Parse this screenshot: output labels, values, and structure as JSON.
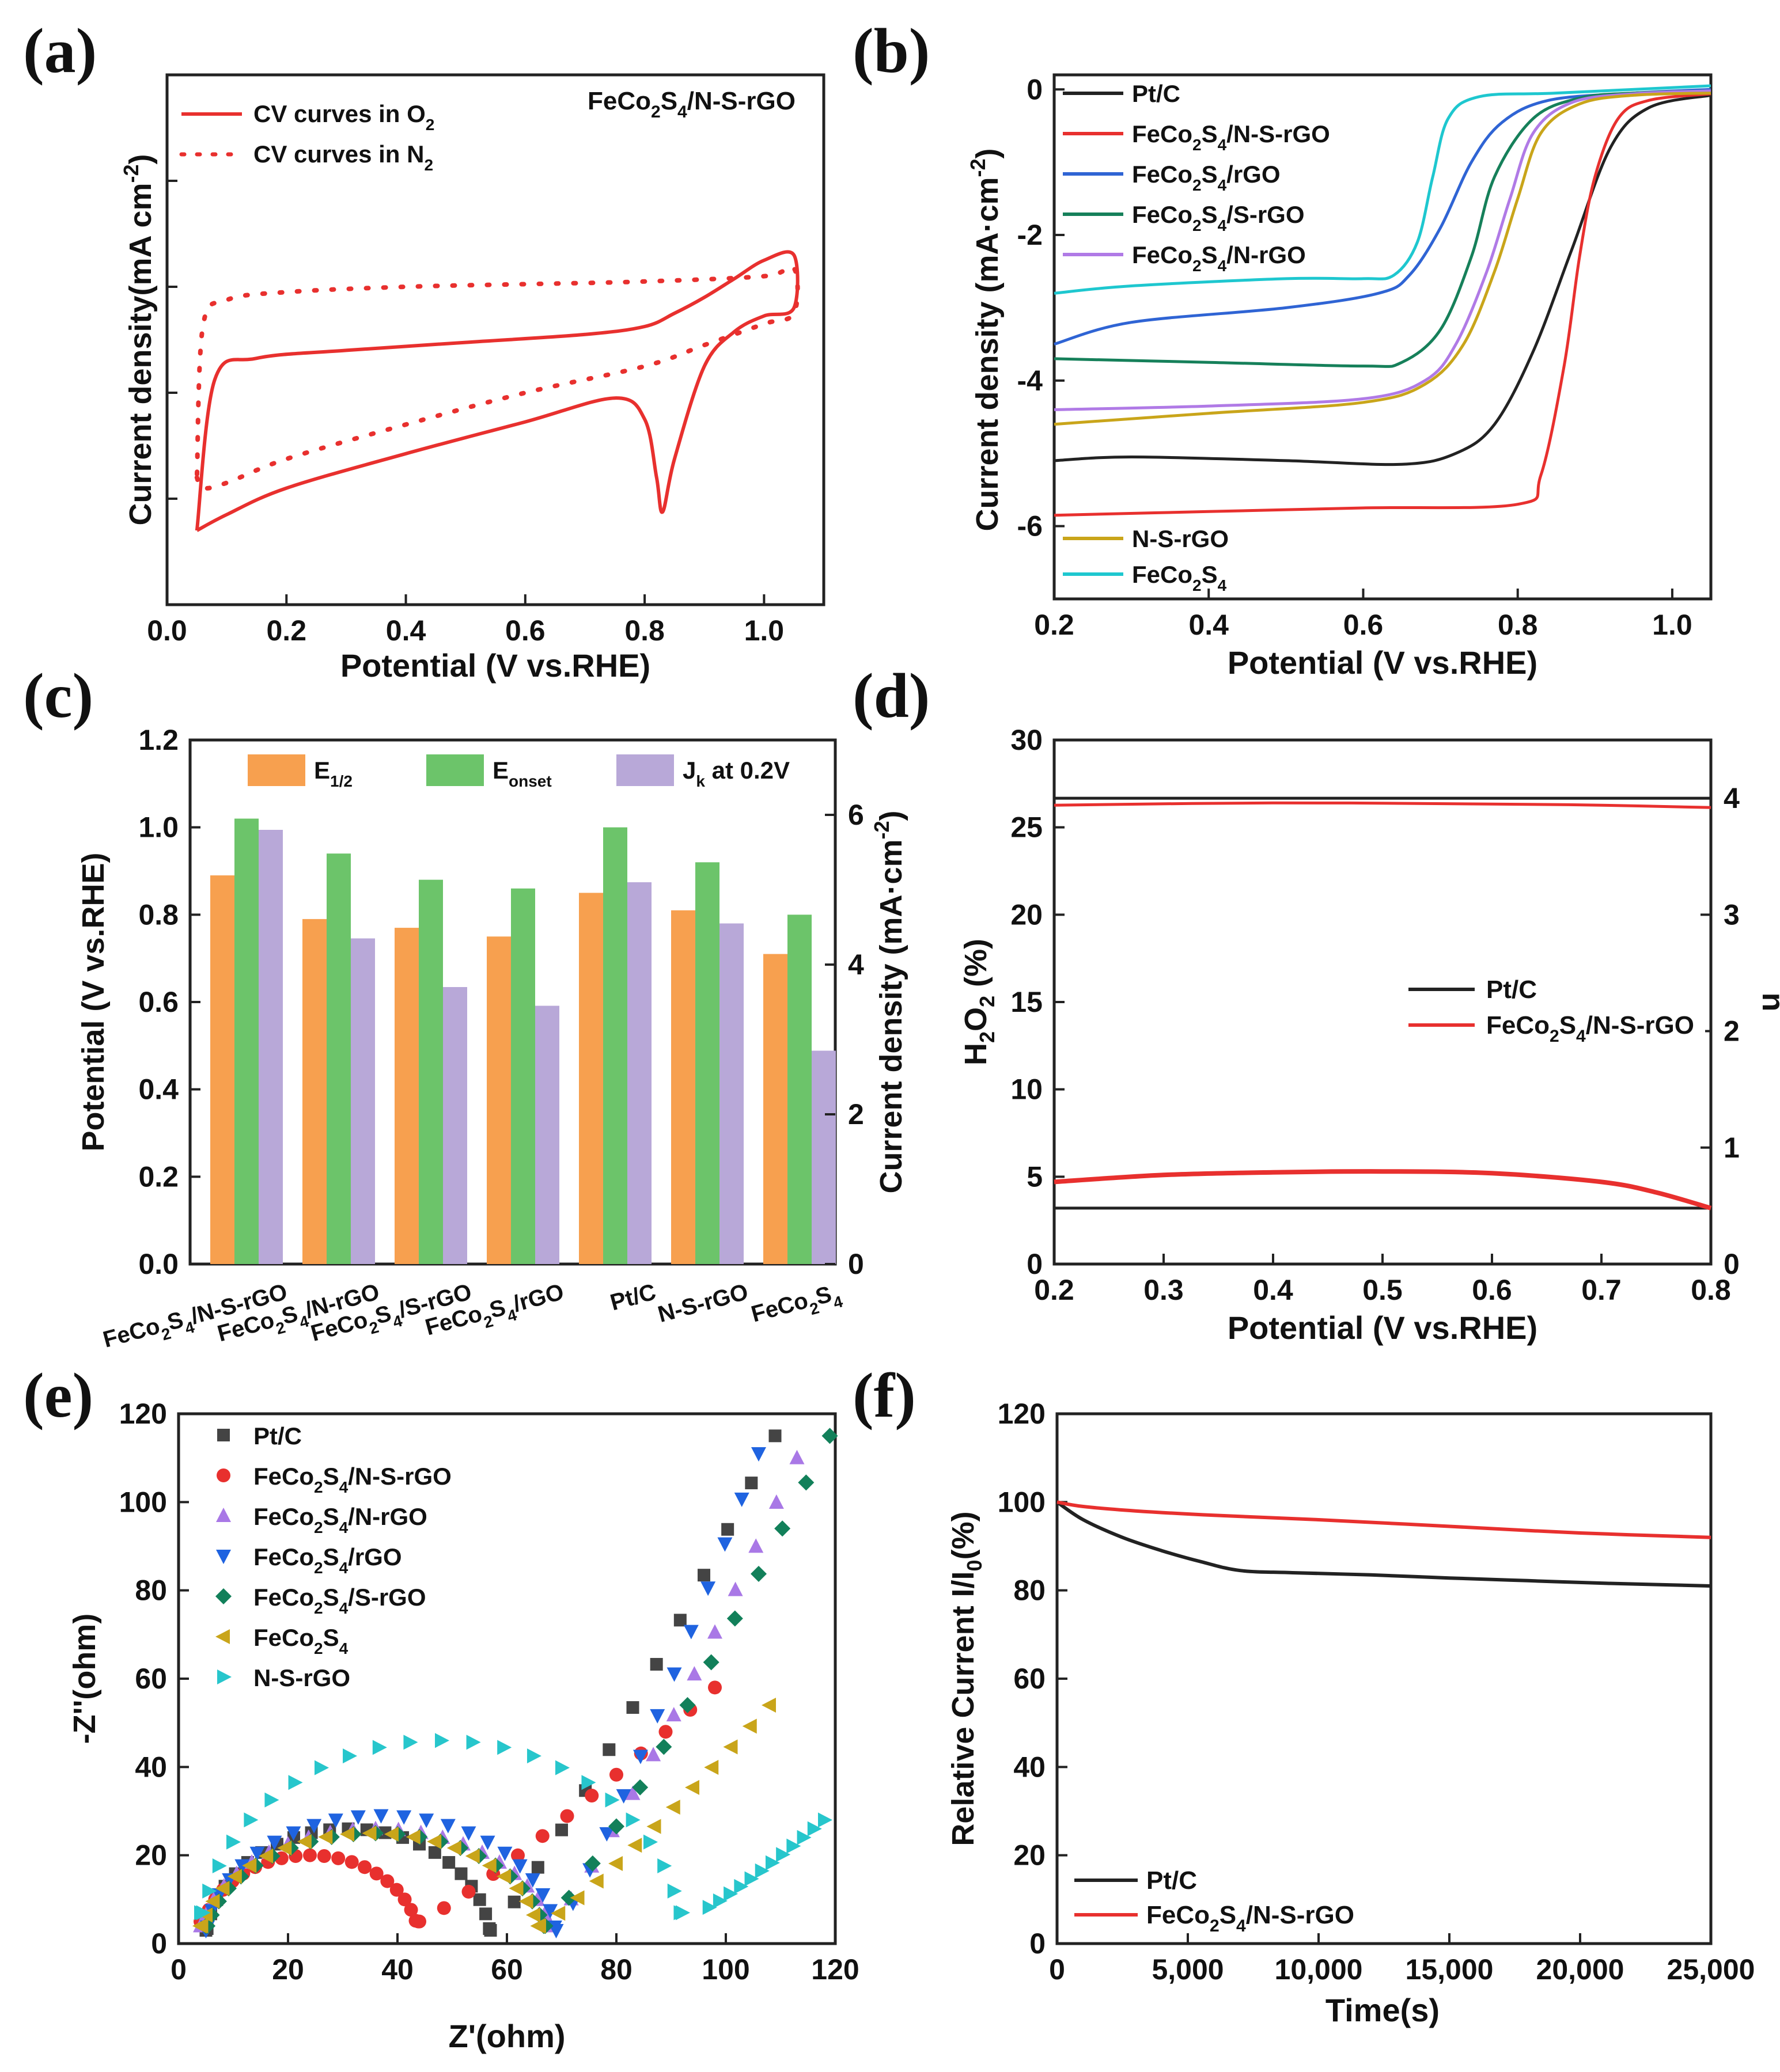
{
  "colors": {
    "black": "#222222",
    "red": "#e8302e",
    "blue": "#2f64d4",
    "green": "#16805a",
    "violet": "#b07ae6",
    "gold": "#c9a51a",
    "cyan": "#1ec7cf",
    "orange": "#f7a04f",
    "lightgreen": "#6cc46a",
    "lavender": "#b8a8d8",
    "markerGray": "#444444",
    "markerRed": "#e8302e",
    "markerViolet": "#a978e6",
    "markerBlue": "#1f63e0",
    "markerGreen": "#12805a",
    "markerGold": "#c9a51a",
    "markerCyan": "#27c6cc"
  },
  "chart_data": [
    {
      "panel": "(a)",
      "type": "line",
      "annotation": "FeCo2S4/N-S-rGO",
      "xlabel": "Potential (V vs.RHE)",
      "ylabel": "Current density(mA cm-2)",
      "xlim": [
        0.0,
        1.1
      ],
      "ylim": [
        -1,
        1
      ],
      "xticks": [
        "0.0",
        "0.2",
        "0.4",
        "0.6",
        "0.8",
        "1.0"
      ],
      "legend": [
        {
          "label": "CV curves in O2",
          "style": "solid"
        },
        {
          "label": "CV curves in N2",
          "style": "dotted"
        }
      ],
      "series": [
        {
          "name": "CV curves in O2",
          "style": "solid",
          "color": "red",
          "x": [
            0.05,
            0.1,
            0.2,
            0.4,
            0.6,
            0.75,
            0.8,
            0.82,
            0.83,
            0.85,
            0.9,
            0.95,
            1.0,
            1.05,
            1.05,
            1.0,
            0.95,
            0.9,
            0.85,
            0.8,
            0.7,
            0.5,
            0.3,
            0.15,
            0.08,
            0.05
          ],
          "y": [
            -0.72,
            -0.66,
            -0.56,
            -0.43,
            -0.31,
            -0.22,
            -0.3,
            -0.52,
            -0.65,
            -0.45,
            -0.1,
            0.03,
            0.09,
            0.12,
            0.32,
            0.3,
            0.23,
            0.16,
            0.1,
            0.05,
            0.02,
            -0.01,
            -0.04,
            -0.07,
            -0.15,
            -0.72
          ]
        },
        {
          "name": "CV curves in N2",
          "style": "dotted",
          "color": "red",
          "x": [
            0.05,
            0.06,
            0.1,
            0.2,
            0.4,
            0.6,
            0.8,
            0.9,
            1.0,
            1.05,
            1.05,
            1.0,
            0.8,
            0.6,
            0.4,
            0.2,
            0.1,
            0.06,
            0.05
          ],
          "y": [
            -0.52,
            -0.56,
            -0.54,
            -0.45,
            -0.32,
            -0.2,
            -0.1,
            -0.02,
            0.06,
            0.1,
            0.27,
            0.24,
            0.22,
            0.21,
            0.2,
            0.18,
            0.15,
            0.05,
            -0.52
          ]
        }
      ]
    },
    {
      "panel": "(b)",
      "type": "line",
      "xlabel": "Potential (V vs.RHE)",
      "ylabel": "Current density (mA·cm-2)",
      "xlim": [
        0.2,
        1.05
      ],
      "ylim": [
        -7,
        0.2
      ],
      "xticks": [
        "0.2",
        "0.4",
        "0.6",
        "0.8",
        "1.0"
      ],
      "yticks": [
        "0",
        "-2",
        "-4",
        "-6"
      ],
      "series": [
        {
          "name": "Pt/C",
          "color": "black",
          "x": [
            0.2,
            0.3,
            0.5,
            0.65,
            0.72,
            0.77,
            0.82,
            0.87,
            0.92,
            0.97,
            1.05
          ],
          "y": [
            -5.1,
            -5.05,
            -5.1,
            -5.15,
            -5.0,
            -4.6,
            -3.6,
            -2.2,
            -0.8,
            -0.25,
            -0.08
          ]
        },
        {
          "name": "FeCo2S4/N-S-rGO",
          "color": "red",
          "x": [
            0.2,
            0.4,
            0.6,
            0.8,
            0.83,
            0.86,
            0.88,
            0.9,
            0.93,
            0.97,
            1.05
          ],
          "y": [
            -5.85,
            -5.8,
            -5.75,
            -5.7,
            -5.3,
            -3.8,
            -2.3,
            -1.2,
            -0.4,
            -0.15,
            -0.06
          ]
        },
        {
          "name": "FeCo2S4/rGO",
          "color": "blue",
          "x": [
            0.2,
            0.3,
            0.5,
            0.62,
            0.66,
            0.7,
            0.74,
            0.78,
            0.84,
            0.95,
            1.05
          ],
          "y": [
            -3.5,
            -3.2,
            -3.0,
            -2.8,
            -2.55,
            -1.9,
            -1.0,
            -0.45,
            -0.15,
            -0.05,
            0.0
          ]
        },
        {
          "name": "FeCo2S4/S-rGO",
          "color": "green",
          "x": [
            0.2,
            0.4,
            0.6,
            0.65,
            0.7,
            0.74,
            0.77,
            0.82,
            0.88,
            0.95,
            1.05
          ],
          "y": [
            -3.7,
            -3.75,
            -3.8,
            -3.75,
            -3.3,
            -2.3,
            -1.2,
            -0.4,
            -0.12,
            -0.05,
            -0.02
          ]
        },
        {
          "name": "FeCo2S4/N-rGO",
          "color": "violet",
          "x": [
            0.2,
            0.4,
            0.6,
            0.68,
            0.72,
            0.76,
            0.79,
            0.82,
            0.87,
            0.95,
            1.05
          ],
          "y": [
            -4.4,
            -4.35,
            -4.25,
            -4.0,
            -3.5,
            -2.5,
            -1.5,
            -0.6,
            -0.18,
            -0.06,
            -0.02
          ]
        },
        {
          "name": "N-S-rGO",
          "color": "gold",
          "x": [
            0.2,
            0.4,
            0.6,
            0.68,
            0.73,
            0.77,
            0.8,
            0.83,
            0.88,
            0.95,
            1.05
          ],
          "y": [
            -4.6,
            -4.45,
            -4.3,
            -4.05,
            -3.5,
            -2.5,
            -1.5,
            -0.6,
            -0.2,
            -0.08,
            -0.05
          ]
        },
        {
          "name": "FeCo2S4",
          "color": "cyan",
          "x": [
            0.2,
            0.3,
            0.5,
            0.6,
            0.64,
            0.67,
            0.69,
            0.71,
            0.75,
            0.85,
            1.05
          ],
          "y": [
            -2.8,
            -2.7,
            -2.6,
            -2.6,
            -2.55,
            -2.1,
            -1.2,
            -0.4,
            -0.1,
            -0.05,
            0.05
          ]
        }
      ],
      "legend_top": [
        "Pt/C",
        "FeCo2S4/N-S-rGO",
        "FeCo2S4/rGO",
        "FeCo2S4/S-rGO",
        "FeCo2S4/N-rGO"
      ],
      "legend_bottom": [
        "N-S-rGO",
        "FeCo2S4"
      ]
    },
    {
      "panel": "(c)",
      "type": "bar",
      "ylabel": "Potential (V vs.RHE)",
      "ylabel_right": "Current density (mA·cm-2)",
      "ylim": [
        0,
        1.2
      ],
      "ylim_right": [
        0,
        7
      ],
      "yticks": [
        "0.0",
        "0.2",
        "0.4",
        "0.6",
        "0.8",
        "1.0",
        "1.2"
      ],
      "yticks_right": [
        "0",
        "2",
        "4",
        "6"
      ],
      "categories": [
        "FeCo2S4/N-S-rGO",
        "FeCo2S4/N-rGO",
        "FeCo2S4/S-rGO",
        "FeCo2S4/rGO",
        "Pt/C",
        "N-S-rGO",
        "FeCo2S4"
      ],
      "series": [
        {
          "name": "E1/2",
          "color": "orange",
          "axis": "left",
          "values": [
            0.89,
            0.79,
            0.77,
            0.75,
            0.85,
            0.81,
            0.71
          ]
        },
        {
          "name": "Eonset",
          "color": "lightgreen",
          "axis": "left",
          "values": [
            1.02,
            0.94,
            0.88,
            0.86,
            1.0,
            0.92,
            0.8
          ]
        },
        {
          "name": "Jk at 0.2V",
          "color": "lavender",
          "axis": "right",
          "values": [
            5.8,
            4.35,
            3.7,
            3.45,
            5.1,
            4.55,
            2.85
          ]
        }
      ],
      "legend": [
        "E1/2",
        "Eonset",
        "Jk at 0.2V"
      ]
    },
    {
      "panel": "(d)",
      "type": "line",
      "xlabel": "Potential (V vs.RHE)",
      "ylabel": "H2O2 (%)",
      "ylabel_right": "n",
      "xlim": [
        0.2,
        0.8
      ],
      "ylim": [
        0,
        30
      ],
      "ylim_right": [
        0,
        4.5
      ],
      "xticks": [
        "0.2",
        "0.3",
        "0.4",
        "0.5",
        "0.6",
        "0.7",
        "0.8"
      ],
      "yticks": [
        "0",
        "5",
        "10",
        "15",
        "20",
        "25",
        "30"
      ],
      "yticks_right": [
        "0",
        "1",
        "2",
        "3",
        "4"
      ],
      "series": [
        {
          "name": "Pt/C",
          "color": "black",
          "axis": "right",
          "x": [
            0.2,
            0.8
          ],
          "y": [
            4.0,
            4.0
          ]
        },
        {
          "name": "FeCo2S4/N-S-rGO",
          "color": "red",
          "axis": "right",
          "x": [
            0.2,
            0.4,
            0.6,
            0.7,
            0.8
          ],
          "y": [
            3.94,
            3.96,
            3.95,
            3.94,
            3.92
          ]
        },
        {
          "name": "Pt/C",
          "color": "black",
          "axis": "left",
          "x": [
            0.2,
            0.8
          ],
          "y": [
            3.2,
            3.2
          ]
        },
        {
          "name": "FeCo2S4/N-S-rGO",
          "color": "red",
          "axis": "left",
          "x": [
            0.2,
            0.3,
            0.4,
            0.5,
            0.6,
            0.7,
            0.75,
            0.8
          ],
          "y": [
            4.7,
            5.1,
            5.25,
            5.3,
            5.2,
            4.7,
            4.1,
            3.2
          ]
        }
      ],
      "legend": [
        "Pt/C",
        "FeCo2S4/N-S-rGO"
      ]
    },
    {
      "panel": "(e)",
      "type": "scatter",
      "xlabel": "Z'(ohm)",
      "ylabel": "-Z''(ohm)",
      "xlim": [
        0,
        120
      ],
      "ylim": [
        0,
        120
      ],
      "xticks": [
        "0",
        "20",
        "40",
        "60",
        "80",
        "100",
        "120"
      ],
      "yticks": [
        "0",
        "20",
        "40",
        "60",
        "80",
        "100",
        "120"
      ],
      "series": [
        {
          "name": "Pt/C",
          "marker": "square",
          "color": "markerGray",
          "center": 31,
          "radius": 26,
          "h": 26,
          "mind": 3,
          "linx": [
            57,
            109
          ],
          "liny": [
            3,
            115
          ]
        },
        {
          "name": "FeCo2S4/N-S-rGO",
          "marker": "circle",
          "color": "markerRed",
          "center": 24,
          "radius": 20,
          "h": 20,
          "mind": 5,
          "linx": [
            44,
            98
          ],
          "liny": [
            5,
            58
          ]
        },
        {
          "name": "FeCo2S4/N-rGO",
          "marker": "triangle-up",
          "color": "markerViolet",
          "center": 36,
          "radius": 32,
          "h": 26,
          "mind": 4,
          "linx": [
            68,
            113
          ],
          "liny": [
            4,
            110
          ]
        },
        {
          "name": "FeCo2S4/rGO",
          "marker": "triangle-down",
          "color": "markerBlue",
          "center": 37,
          "radius": 32,
          "h": 29,
          "mind": 3,
          "linx": [
            69,
            106
          ],
          "liny": [
            3,
            111
          ]
        },
        {
          "name": "FeCo2S4/S-rGO",
          "marker": "diamond",
          "color": "markerGreen",
          "center": 36,
          "radius": 31,
          "h": 25,
          "mind": 4,
          "linx": [
            67,
            119
          ],
          "liny": [
            4,
            115
          ]
        },
        {
          "name": "FeCo2S4",
          "marker": "triangle-left",
          "color": "markerGold",
          "center": 35,
          "radius": 31,
          "h": 25,
          "mind": 4,
          "linx": [
            66,
            108
          ],
          "liny": [
            4,
            54
          ]
        },
        {
          "name": "N-S-rGO",
          "marker": "triangle-right",
          "color": "markerCyan",
          "center": 48,
          "radius": 44,
          "h": 46,
          "mind": 7,
          "linx": [
            95,
            118
          ],
          "liny": [
            7,
            28
          ]
        }
      ],
      "legend": [
        "Pt/C",
        "FeCo2S4/N-S-rGO",
        "FeCo2S4/N-rGO",
        "FeCo2S4/rGO",
        "FeCo2S4/S-rGO",
        "FeCo2S4",
        "N-S-rGO"
      ]
    },
    {
      "panel": "(f)",
      "type": "line",
      "xlabel": "Time(s)",
      "ylabel": "Relative Current I/I0(%)",
      "xlim": [
        0,
        25000
      ],
      "ylim": [
        0,
        120
      ],
      "xticks": [
        "0",
        "5,000",
        "10,000",
        "15,000",
        "20,000",
        "25,000"
      ],
      "yticks": [
        "0",
        "20",
        "40",
        "60",
        "80",
        "100",
        "120"
      ],
      "series": [
        {
          "name": "Pt/C",
          "color": "black",
          "x": [
            0,
            1000,
            2500,
            4000,
            5500,
            7000,
            9000,
            12000,
            15000,
            18000,
            21000,
            25000
          ],
          "y": [
            100,
            96,
            92,
            89,
            86.5,
            84.5,
            84,
            83.5,
            82.8,
            82.2,
            81.6,
            81
          ]
        },
        {
          "name": "FeCo2S4/N-S-rGO",
          "color": "red",
          "x": [
            0,
            1000,
            3000,
            6000,
            10000,
            15000,
            20000,
            25000
          ],
          "y": [
            100,
            99,
            98,
            97,
            96,
            94.5,
            93,
            92
          ]
        }
      ],
      "legend": [
        "Pt/C",
        "FeCo2S4/N-S-rGO"
      ]
    }
  ]
}
